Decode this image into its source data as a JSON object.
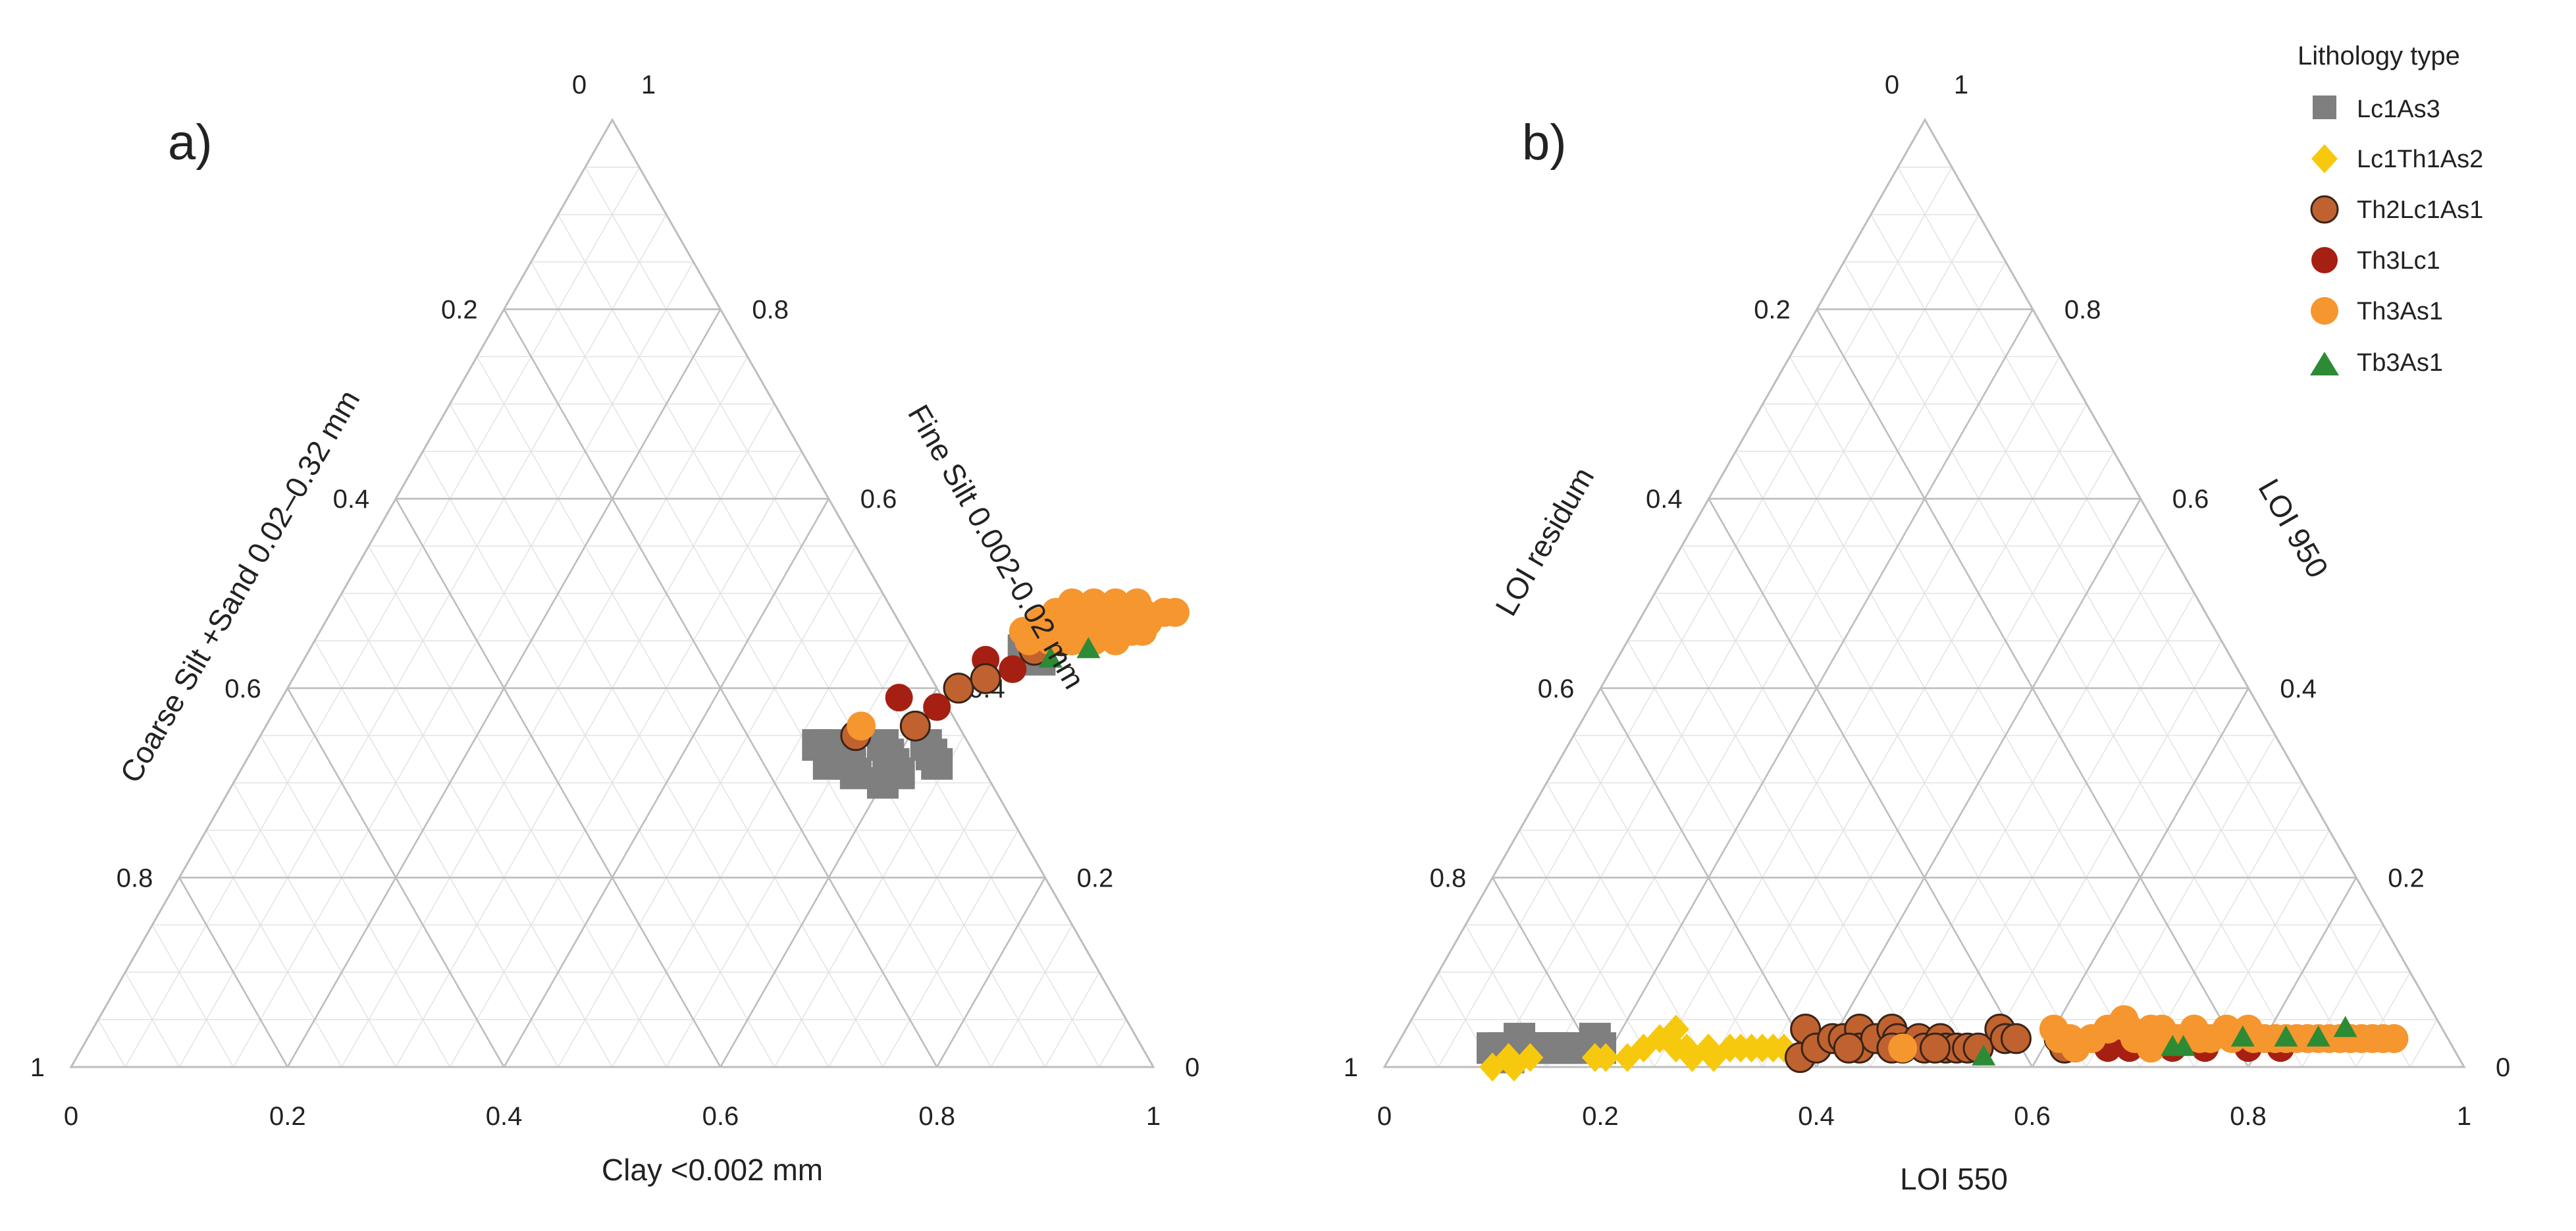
{
  "colors": {
    "grid_major": "#bdbdbd",
    "grid_minor": "#e4e4e4",
    "Lc1As3": "#7f7f7f",
    "Lc1Th1As2": "#f7c90e",
    "Th2Lc1As1": "#c0622f",
    "Th3Lc1": "#a52012",
    "Th3As1": "#f6962e",
    "Tb3As1": "#2d8a35",
    "outline": "#3a2418"
  },
  "legend": {
    "title": "Lithology type",
    "items": [
      {
        "name": "Lc1As3",
        "marker": "square"
      },
      {
        "name": "Lc1Th1As2",
        "marker": "diamond"
      },
      {
        "name": "Th2Lc1As1",
        "marker": "circle-outlined"
      },
      {
        "name": "Th3Lc1",
        "marker": "circle"
      },
      {
        "name": "Th3As1",
        "marker": "circle"
      },
      {
        "name": "Tb3As1",
        "marker": "triangle"
      }
    ]
  },
  "chart_data": [
    {
      "type": "scatter",
      "subtype": "ternary",
      "panel_label": "a)",
      "bottom_axis_title": "Clay <0.002 mm",
      "right_axis_title": "Fine Silt 0.002-0.02 mm",
      "left_axis_title": "Coarse Silt +Sand 0.02–0.32 mm",
      "bottom_ticks": [
        "0",
        "0.2",
        "0.4",
        "0.6",
        "0.8",
        "1"
      ],
      "right_ticks": [
        "0",
        "0.2",
        "0.4",
        "0.6",
        "0.8",
        "1"
      ],
      "left_ticks": [
        "0",
        "0.2",
        "0.4",
        "0.6",
        "0.8",
        "1"
      ],
      "series": [
        {
          "name": "Lc1As3",
          "points": [
            [
              0.52,
              0.34
            ],
            [
              0.53,
              0.34
            ],
            [
              0.55,
              0.33
            ],
            [
              0.56,
              0.32
            ],
            [
              0.58,
              0.34
            ],
            [
              0.59,
              0.33
            ],
            [
              0.6,
              0.32
            ],
            [
              0.61,
              0.31
            ],
            [
              0.62,
              0.34
            ],
            [
              0.63,
              0.33
            ],
            [
              0.64,
              0.32
            ],
            [
              0.57,
              0.31
            ],
            [
              0.6,
              0.3
            ],
            [
              0.66,
              0.44
            ],
            [
              0.68,
              0.43
            ],
            [
              0.54,
              0.32
            ]
          ]
        },
        {
          "name": "Th3Lc1",
          "points": [
            [
              0.57,
              0.39
            ],
            [
              0.61,
              0.38
            ],
            [
              0.63,
              0.43
            ],
            [
              0.66,
              0.42
            ]
          ]
        },
        {
          "name": "Th2Lc1As1",
          "points": [
            [
              0.55,
              0.35
            ],
            [
              0.6,
              0.36
            ],
            [
              0.62,
              0.4
            ],
            [
              0.64,
              0.41
            ],
            [
              0.67,
              0.44
            ],
            [
              0.69,
              0.45
            ],
            [
              0.71,
              0.46
            ]
          ]
        },
        {
          "name": "Th3As1",
          "points": [
            [
              0.55,
              0.36
            ],
            [
              0.65,
              0.46
            ],
            [
              0.66,
              0.47
            ],
            [
              0.67,
              0.48
            ],
            [
              0.68,
              0.47
            ],
            [
              0.69,
              0.48
            ],
            [
              0.7,
              0.47
            ],
            [
              0.71,
              0.48
            ],
            [
              0.72,
              0.47
            ],
            [
              0.73,
              0.48
            ],
            [
              0.74,
              0.47
            ],
            [
              0.75,
              0.48
            ],
            [
              0.76,
              0.47
            ],
            [
              0.77,
              0.48
            ],
            [
              0.78,
              0.48
            ],
            [
              0.67,
              0.46
            ],
            [
              0.69,
              0.46
            ],
            [
              0.71,
              0.46
            ],
            [
              0.73,
              0.46
            ],
            [
              0.75,
              0.46
            ],
            [
              0.66,
              0.45
            ],
            [
              0.68,
              0.45
            ],
            [
              0.7,
              0.45
            ],
            [
              0.72,
              0.45
            ],
            [
              0.74,
              0.45
            ],
            [
              0.76,
              0.46
            ],
            [
              0.72,
              0.49
            ],
            [
              0.74,
              0.49
            ],
            [
              0.7,
              0.49
            ],
            [
              0.68,
              0.49
            ]
          ]
        },
        {
          "name": "Tb3As1",
          "points": [
            [
              0.69,
              0.43
            ],
            [
              0.72,
              0.44
            ]
          ]
        }
      ]
    },
    {
      "type": "scatter",
      "subtype": "ternary",
      "panel_label": "b)",
      "bottom_axis_title": "LOI 550",
      "right_axis_title": "LOI 950",
      "left_axis_title": "LOI residum",
      "bottom_ticks": [
        "0",
        "0.2",
        "0.4",
        "0.6",
        "0.8",
        "1"
      ],
      "right_ticks": [
        "0",
        "0.2",
        "0.4",
        "0.6",
        "0.8",
        "1"
      ],
      "left_ticks": [
        "0",
        "0.2",
        "0.4",
        "0.6",
        "0.8",
        "1"
      ],
      "series": [
        {
          "name": "Lc1As3",
          "points": [
            [
              0.09,
              0.02
            ],
            [
              0.1,
              0.02
            ],
            [
              0.11,
              0.01
            ],
            [
              0.12,
              0.02
            ],
            [
              0.13,
              0.02
            ],
            [
              0.14,
              0.02
            ],
            [
              0.15,
              0.02
            ],
            [
              0.16,
              0.02
            ],
            [
              0.17,
              0.02
            ],
            [
              0.18,
              0.03
            ],
            [
              0.19,
              0.02
            ],
            [
              0.11,
              0.03
            ]
          ]
        },
        {
          "name": "Lc1Th1As2",
          "points": [
            [
              0.1,
              0.0
            ],
            [
              0.11,
              0.01
            ],
            [
              0.12,
              0.0
            ],
            [
              0.13,
              0.01
            ],
            [
              0.19,
              0.01
            ],
            [
              0.2,
              0.01
            ],
            [
              0.22,
              0.01
            ],
            [
              0.23,
              0.02
            ],
            [
              0.24,
              0.03
            ],
            [
              0.25,
              0.04
            ],
            [
              0.26,
              0.02
            ],
            [
              0.27,
              0.02
            ],
            [
              0.28,
              0.01
            ],
            [
              0.29,
              0.02
            ],
            [
              0.3,
              0.01
            ],
            [
              0.31,
              0.02
            ],
            [
              0.32,
              0.02
            ],
            [
              0.33,
              0.02
            ],
            [
              0.34,
              0.02
            ],
            [
              0.35,
              0.02
            ],
            [
              0.36,
              0.02
            ]
          ]
        },
        {
          "name": "Th2Lc1As1",
          "points": [
            [
              0.37,
              0.04
            ],
            [
              0.38,
              0.01
            ],
            [
              0.39,
              0.02
            ],
            [
              0.4,
              0.03
            ],
            [
              0.41,
              0.03
            ],
            [
              0.42,
              0.04
            ],
            [
              0.43,
              0.02
            ],
            [
              0.44,
              0.03
            ],
            [
              0.45,
              0.04
            ],
            [
              0.46,
              0.03
            ],
            [
              0.47,
              0.02
            ],
            [
              0.48,
              0.03
            ],
            [
              0.49,
              0.02
            ],
            [
              0.5,
              0.03
            ],
            [
              0.51,
              0.02
            ],
            [
              0.52,
              0.02
            ],
            [
              0.53,
              0.02
            ],
            [
              0.54,
              0.02
            ],
            [
              0.55,
              0.04
            ],
            [
              0.56,
              0.03
            ],
            [
              0.57,
              0.03
            ],
            [
              0.61,
              0.03
            ],
            [
              0.62,
              0.02
            ],
            [
              0.46,
              0.02
            ],
            [
              0.5,
              0.02
            ],
            [
              0.42,
              0.02
            ]
          ]
        },
        {
          "name": "Th3Lc1",
          "points": [
            [
              0.62,
              0.02
            ],
            [
              0.66,
              0.02
            ],
            [
              0.68,
              0.02
            ],
            [
              0.72,
              0.02
            ],
            [
              0.75,
              0.02
            ],
            [
              0.79,
              0.02
            ],
            [
              0.82,
              0.02
            ]
          ]
        },
        {
          "name": "Th3As1",
          "points": [
            [
              0.47,
              0.02
            ],
            [
              0.6,
              0.04
            ],
            [
              0.61,
              0.03
            ],
            [
              0.62,
              0.03
            ],
            [
              0.64,
              0.03
            ],
            [
              0.65,
              0.04
            ],
            [
              0.66,
              0.05
            ],
            [
              0.67,
              0.04
            ],
            [
              0.68,
              0.03
            ],
            [
              0.69,
              0.04
            ],
            [
              0.7,
              0.04
            ],
            [
              0.71,
              0.03
            ],
            [
              0.72,
              0.03
            ],
            [
              0.73,
              0.04
            ],
            [
              0.74,
              0.03
            ],
            [
              0.75,
              0.03
            ],
            [
              0.76,
              0.04
            ],
            [
              0.77,
              0.03
            ],
            [
              0.78,
              0.04
            ],
            [
              0.79,
              0.03
            ],
            [
              0.8,
              0.03
            ],
            [
              0.81,
              0.03
            ],
            [
              0.82,
              0.03
            ],
            [
              0.83,
              0.03
            ],
            [
              0.84,
              0.03
            ],
            [
              0.85,
              0.03
            ],
            [
              0.86,
              0.03
            ],
            [
              0.87,
              0.03
            ],
            [
              0.88,
              0.03
            ],
            [
              0.89,
              0.03
            ],
            [
              0.9,
              0.03
            ],
            [
              0.91,
              0.03
            ],
            [
              0.92,
              0.03
            ],
            [
              0.63,
              0.02
            ],
            [
              0.7,
              0.02
            ]
          ]
        },
        {
          "name": "Tb3As1",
          "points": [
            [
              0.55,
              0.01
            ],
            [
              0.72,
              0.02
            ],
            [
              0.73,
              0.02
            ],
            [
              0.78,
              0.03
            ],
            [
              0.82,
              0.03
            ],
            [
              0.85,
              0.03
            ],
            [
              0.87,
              0.04
            ]
          ]
        }
      ]
    }
  ]
}
